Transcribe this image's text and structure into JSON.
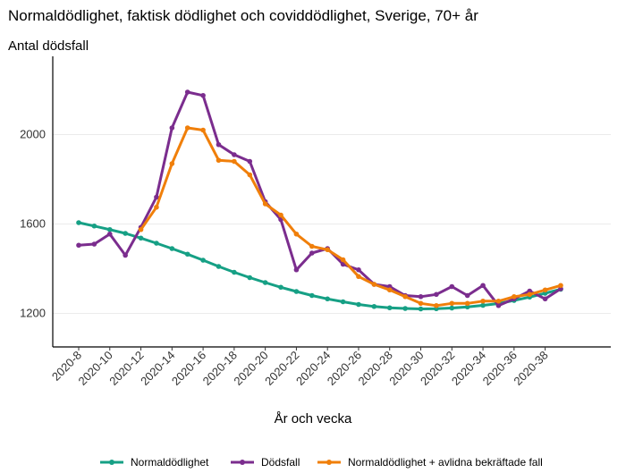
{
  "chart_data": {
    "type": "line",
    "title": "Normaldödlighet, faktisk dödlighet och coviddödlighet, Sverige, 70+ år",
    "ylabel": "Antal dödsfall",
    "xlabel": "År och vecka",
    "x": [
      "2020-8",
      "2020-9",
      "2020-10",
      "2020-11",
      "2020-12",
      "2020-13",
      "2020-14",
      "2020-15",
      "2020-16",
      "2020-17",
      "2020-18",
      "2020-19",
      "2020-20",
      "2020-21",
      "2020-22",
      "2020-23",
      "2020-24",
      "2020-25",
      "2020-26",
      "2020-27",
      "2020-28",
      "2020-29",
      "2020-30",
      "2020-31",
      "2020-32",
      "2020-33",
      "2020-34",
      "2020-35",
      "2020-36",
      "2020-37",
      "2020-38",
      "2020-39"
    ],
    "xticks": [
      "2020-8",
      "2020-10",
      "2020-12",
      "2020-14",
      "2020-16",
      "2020-18",
      "2020-20",
      "2020-22",
      "2020-24",
      "2020-26",
      "2020-28",
      "2020-30",
      "2020-32",
      "2020-34",
      "2020-36",
      "2020-38"
    ],
    "ylim": [
      1050,
      2350
    ],
    "yticks": [
      1200,
      1600,
      2000
    ],
    "grid": "horizontal",
    "legend_position": "bottom",
    "series": [
      {
        "name": "Normaldödlighet",
        "color": "#16a085",
        "values": [
          1606,
          1591,
          1575,
          1558,
          1537,
          1514,
          1490,
          1465,
          1438,
          1410,
          1384,
          1360,
          1338,
          1317,
          1298,
          1280,
          1265,
          1252,
          1240,
          1231,
          1225,
          1222,
          1220,
          1221,
          1224,
          1229,
          1236,
          1244,
          1258,
          1273,
          1290,
          1308
        ]
      },
      {
        "name": "Dödsfall",
        "color": "#7b2d8e",
        "values": [
          1505,
          1510,
          1555,
          1460,
          1585,
          1720,
          2030,
          2190,
          2175,
          1955,
          1910,
          1880,
          1700,
          1620,
          1395,
          1470,
          1490,
          1420,
          1395,
          1330,
          1320,
          1280,
          1275,
          1285,
          1320,
          1280,
          1325,
          1235,
          1265,
          1300,
          1265,
          1310
        ]
      },
      {
        "name": "Normaldödlighet + avlidna bekräftade fall",
        "color": "#f07f0a",
        "values": [
          null,
          null,
          null,
          null,
          1575,
          1675,
          1870,
          2030,
          2020,
          1885,
          1880,
          1820,
          1690,
          1640,
          1555,
          1500,
          1485,
          1440,
          1365,
          1330,
          1305,
          1275,
          1245,
          1235,
          1245,
          1245,
          1255,
          1255,
          1275,
          1285,
          1305,
          1325
        ]
      }
    ]
  }
}
